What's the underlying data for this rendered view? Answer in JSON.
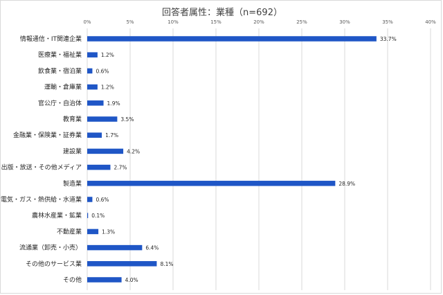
{
  "chart_data": {
    "type": "bar",
    "orientation": "horizontal",
    "title": "回答者属性：業種（n=692）",
    "xlim": [
      0,
      40
    ],
    "x_ticks": [
      "0%",
      "5%",
      "10%",
      "15%",
      "20%",
      "25%",
      "30%",
      "35%",
      "40%"
    ],
    "x_tick_values": [
      0,
      5,
      10,
      15,
      20,
      25,
      30,
      35,
      40
    ],
    "grid": true,
    "bar_color": "#1f56c6",
    "categories": [
      "情報通信・IT関連企業",
      "医療業・福祉業",
      "飲食業・宿泊業",
      "運輸・倉庫業",
      "官公庁・自治体",
      "教育業",
      "金融業・保険業・証券業",
      "建設業",
      "出版・放送・その他メディア",
      "製造業",
      "電気・ガス・熱供給・水道業",
      "農林水産業・鉱業",
      "不動産業",
      "流通業（卸売・小売）",
      "その他のサービス業",
      "その他"
    ],
    "values": [
      33.7,
      1.2,
      0.6,
      1.2,
      1.9,
      3.5,
      1.7,
      4.2,
      2.7,
      28.9,
      0.6,
      0.1,
      1.3,
      6.4,
      8.1,
      4.0
    ],
    "data_labels": [
      "33.7%",
      "1.2%",
      "0.6%",
      "1.2%",
      "1.9%",
      "3.5%",
      "1.7%",
      "4.2%",
      "2.7%",
      "28.9%",
      "0.6%",
      "0.1%",
      "1.3%",
      "6.4%",
      "8.1%",
      "4.0%"
    ]
  }
}
